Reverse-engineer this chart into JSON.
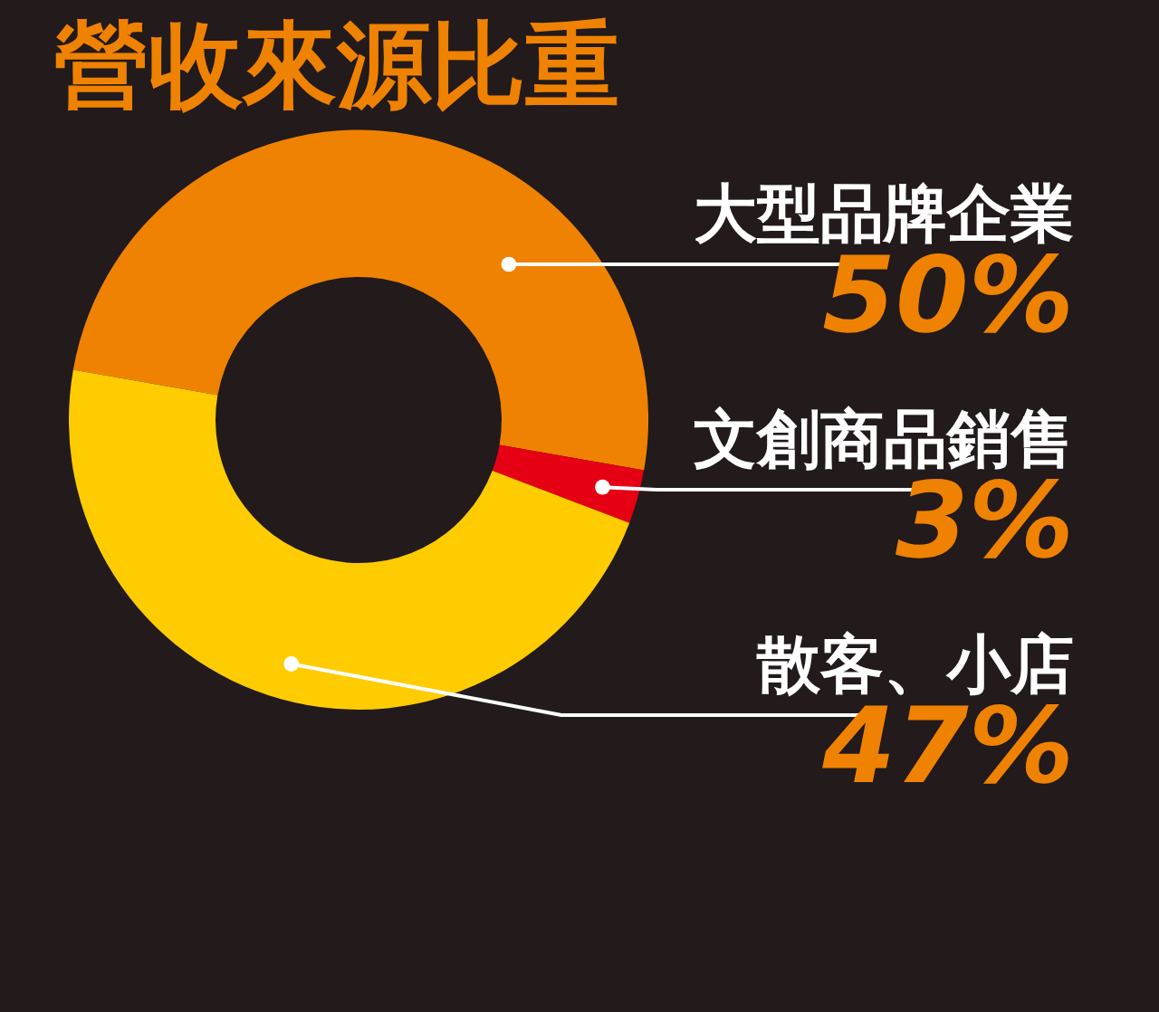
{
  "chart_data": {
    "type": "donut",
    "title": "營收來源比重",
    "categories": [
      "大型品牌企業",
      "文創商品銷售",
      "散客、小店"
    ],
    "values": [
      50,
      3,
      47
    ],
    "colors": [
      "#ef8200",
      "#e60013",
      "#fecc00"
    ],
    "value_labels": [
      "50%",
      "3%",
      "47%"
    ]
  }
}
